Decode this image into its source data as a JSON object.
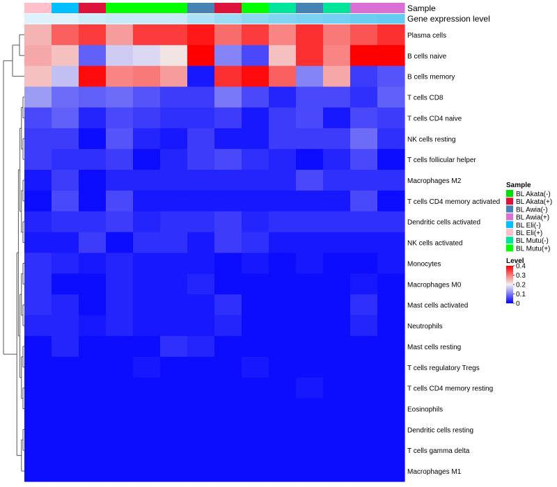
{
  "annotation_labels": {
    "sample": "Sample",
    "gene_expression": "Gene expression level"
  },
  "legend": {
    "sample_title": "Sample",
    "level_title": "Level",
    "sample_entries": [
      {
        "label": "BL Akata(-)",
        "color": "#00e000"
      },
      {
        "label": "BL Akata(+)",
        "color": "#dc143c"
      },
      {
        "label": "BL Awia(-)",
        "color": "#4682b4"
      },
      {
        "label": "BL Awia(+)",
        "color": "#da70d6"
      },
      {
        "label": "BL Eli(-)",
        "color": "#00bfff"
      },
      {
        "label": "BL Eli(+)",
        "color": "#ffc0cb"
      },
      {
        "label": "BL Mutu(-)",
        "color": "#00e59a"
      },
      {
        "label": "BL Mutu(+)",
        "color": "#00ff00"
      }
    ]
  },
  "chart_data": {
    "type": "heatmap",
    "title": "",
    "color_scale": {
      "min": 0,
      "max": 0.4,
      "ticks": [
        "0.4",
        "0.3",
        "0.2",
        "0.1",
        "0"
      ],
      "low_color": "#0000ff",
      "mid_color": "#f2f0f0",
      "high_color": "#ff0000",
      "mid_value": 0.2
    },
    "column_samples": [
      "BL Eli(+)",
      "BL Eli(-)",
      "BL Akata(+)",
      "BL Mutu(+)",
      "BL Mutu(+)",
      "BL Mutu(+)",
      "BL Awia(-)",
      "BL Akata(+)",
      "BL Mutu(+)",
      "BL Mutu(-)",
      "BL Awia(-)",
      "BL Mutu(-)",
      "BL Awia(+)",
      "BL Awia(+)"
    ],
    "column_gene_expression": [
      0.05,
      0.05,
      0.1,
      0.12,
      0.12,
      0.12,
      0.2,
      0.25,
      0.3,
      0.33,
      0.35,
      0.37,
      0.4,
      0.42
    ],
    "rows": [
      "Plasma cells",
      "B cells naive",
      "B cells memory",
      "T cells CD8",
      "T cells CD4 naive",
      "NK cells resting",
      "T cells follicular helper",
      "Macrophages M2",
      "T cells CD4 memory activated",
      "Dendritic cells activated",
      "NK cells activated",
      "Monocytes",
      "Macrophages M0",
      "Mast cells activated",
      "Neutrophils",
      "Mast cells resting",
      "T cells regulatory  Tregs",
      "T cells CD4 memory resting",
      "Eosinophils",
      "Dendritic cells resting",
      "T cells gamma delta",
      "Macrophages M1"
    ],
    "values": [
      [
        0.25,
        0.32,
        0.35,
        0.27,
        0.35,
        0.35,
        0.38,
        0.31,
        0.35,
        0.29,
        0.36,
        0.3,
        0.33,
        0.36
      ],
      [
        0.26,
        0.24,
        0.08,
        0.17,
        0.18,
        0.21,
        0.4,
        0.11,
        0.06,
        0.24,
        0.36,
        0.29,
        0.4,
        0.4
      ],
      [
        0.24,
        0.16,
        0.39,
        0.29,
        0.3,
        0.27,
        0.02,
        0.36,
        0.39,
        0.32,
        0.11,
        0.26,
        0.05,
        0.07
      ],
      [
        0.13,
        0.09,
        0.08,
        0.09,
        0.07,
        0.05,
        0.05,
        0.1,
        0.06,
        0.03,
        0.06,
        0.06,
        0.04,
        0.08
      ],
      [
        0.06,
        0.08,
        0.03,
        0.06,
        0.05,
        0.04,
        0.04,
        0.05,
        0.02,
        0.05,
        0.06,
        0.02,
        0.06,
        0.05
      ],
      [
        0.05,
        0.05,
        0.01,
        0.07,
        0.03,
        0.02,
        0.05,
        0.02,
        0.02,
        0.05,
        0.05,
        0.05,
        0.09,
        0.04
      ],
      [
        0.05,
        0.04,
        0.04,
        0.05,
        0.01,
        0.03,
        0.05,
        0.06,
        0.04,
        0.03,
        0.01,
        0.03,
        0.06,
        0.01
      ],
      [
        0.02,
        0.05,
        0.01,
        0.03,
        0.03,
        0.03,
        0.03,
        0.03,
        0.03,
        0.03,
        0.06,
        0.04,
        0.04,
        0.04
      ],
      [
        0.01,
        0.06,
        0.01,
        0.06,
        0.02,
        0.02,
        0.02,
        0.02,
        0.02,
        0.02,
        0.02,
        0.02,
        0.06,
        0.01
      ],
      [
        0.03,
        0.04,
        0.04,
        0.05,
        0.03,
        0.04,
        0.04,
        0.05,
        0.03,
        0.04,
        0.04,
        0.04,
        0.04,
        0.04
      ],
      [
        0.02,
        0.02,
        0.05,
        0.01,
        0.04,
        0.04,
        0.02,
        0.05,
        0.04,
        0.02,
        0.02,
        0.02,
        0.02,
        0.02
      ],
      [
        0.04,
        0.03,
        0.02,
        0.03,
        0.02,
        0.02,
        0.02,
        0.01,
        0.02,
        0.01,
        0.02,
        0.01,
        0.01,
        0.02
      ],
      [
        0.04,
        0.01,
        0.01,
        0.03,
        0.02,
        0.02,
        0.03,
        0.01,
        0.01,
        0.01,
        0.01,
        0.01,
        0.02,
        0.01
      ],
      [
        0.04,
        0.03,
        0.01,
        0.03,
        0.02,
        0.02,
        0.02,
        0.04,
        0.01,
        0.01,
        0.01,
        0.01,
        0.04,
        0.01
      ],
      [
        0.03,
        0.03,
        0.02,
        0.03,
        0.02,
        0.02,
        0.02,
        0.03,
        0.01,
        0.01,
        0.01,
        0.01,
        0.03,
        0.01
      ],
      [
        0.01,
        0.03,
        0.01,
        0.01,
        0.01,
        0.04,
        0.03,
        0.01,
        0.01,
        0.01,
        0.01,
        0.01,
        0.01,
        0.01
      ],
      [
        0.01,
        0.01,
        0.01,
        0.01,
        0.02,
        0.01,
        0.01,
        0.01,
        0.02,
        0.01,
        0.01,
        0.01,
        0.01,
        0.01
      ],
      [
        0.01,
        0.01,
        0.01,
        0.01,
        0.01,
        0.01,
        0.01,
        0.01,
        0.01,
        0.01,
        0.02,
        0.01,
        0.01,
        0.01
      ],
      [
        0.01,
        0.01,
        0.01,
        0.01,
        0.01,
        0.01,
        0.01,
        0.01,
        0.01,
        0.01,
        0.01,
        0.01,
        0.01,
        0.01
      ],
      [
        0.01,
        0.01,
        0.01,
        0.01,
        0.01,
        0.01,
        0.01,
        0.01,
        0.01,
        0.01,
        0.01,
        0.01,
        0.01,
        0.01
      ],
      [
        0.01,
        0.01,
        0.01,
        0.01,
        0.01,
        0.01,
        0.01,
        0.01,
        0.01,
        0.01,
        0.01,
        0.01,
        0.01,
        0.01
      ],
      [
        0.01,
        0.01,
        0.01,
        0.01,
        0.01,
        0.01,
        0.01,
        0.01,
        0.01,
        0.01,
        0.01,
        0.01,
        0.01,
        0.01
      ]
    ]
  }
}
